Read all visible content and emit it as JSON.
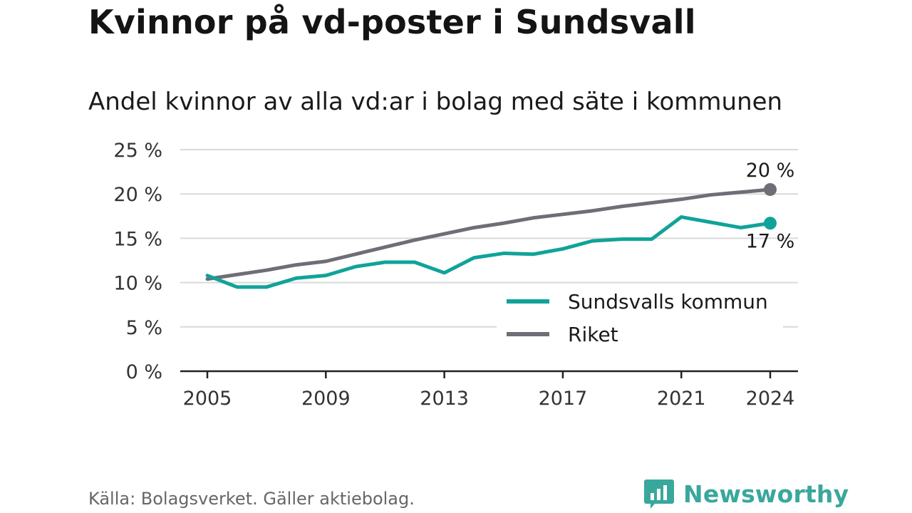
{
  "title": "Kvinnor på vd-poster i Sundsvall",
  "subtitle": "Andel kvinnor av alla vd:ar i bolag med säte i kommunen",
  "source": "Källa: Bolagsverket. Gäller aktiebolag.",
  "brand": {
    "name": "Newsworthy",
    "icon": "newsworthy-logo-icon",
    "color": "#3aa79c"
  },
  "chart_data": {
    "type": "line",
    "title": "Kvinnor på vd-poster i Sundsvall",
    "subtitle": "Andel kvinnor av alla vd:ar i bolag med säte i kommunen",
    "xlabel": "",
    "ylabel": "",
    "x": [
      2005,
      2006,
      2007,
      2008,
      2009,
      2010,
      2011,
      2012,
      2013,
      2014,
      2015,
      2016,
      2017,
      2018,
      2019,
      2020,
      2021,
      2022,
      2023,
      2024
    ],
    "x_ticks": [
      "2005",
      "2009",
      "2013",
      "2017",
      "2021",
      "2024"
    ],
    "y_ticks": [
      "0 %",
      "5 %",
      "10 %",
      "15 %",
      "20 %",
      "25 %"
    ],
    "ylim": [
      0,
      25
    ],
    "grid": true,
    "legend_position": "bottom-right",
    "series": [
      {
        "name": "Sundsvalls kommun",
        "color": "#10a399",
        "values": [
          10.8,
          9.5,
          9.5,
          10.5,
          10.8,
          11.8,
          12.3,
          12.3,
          11.1,
          12.8,
          13.3,
          13.2,
          13.8,
          14.7,
          14.9,
          14.9,
          17.4,
          16.8,
          16.2,
          16.7
        ],
        "end_label": "17 %"
      },
      {
        "name": "Riket",
        "color": "#6f6d75",
        "values": [
          10.4,
          10.9,
          11.4,
          12.0,
          12.4,
          13.2,
          14.0,
          14.8,
          15.5,
          16.2,
          16.7,
          17.3,
          17.7,
          18.1,
          18.6,
          19.0,
          19.4,
          19.9,
          20.2,
          20.5
        ],
        "end_label": "20 %"
      }
    ]
  }
}
